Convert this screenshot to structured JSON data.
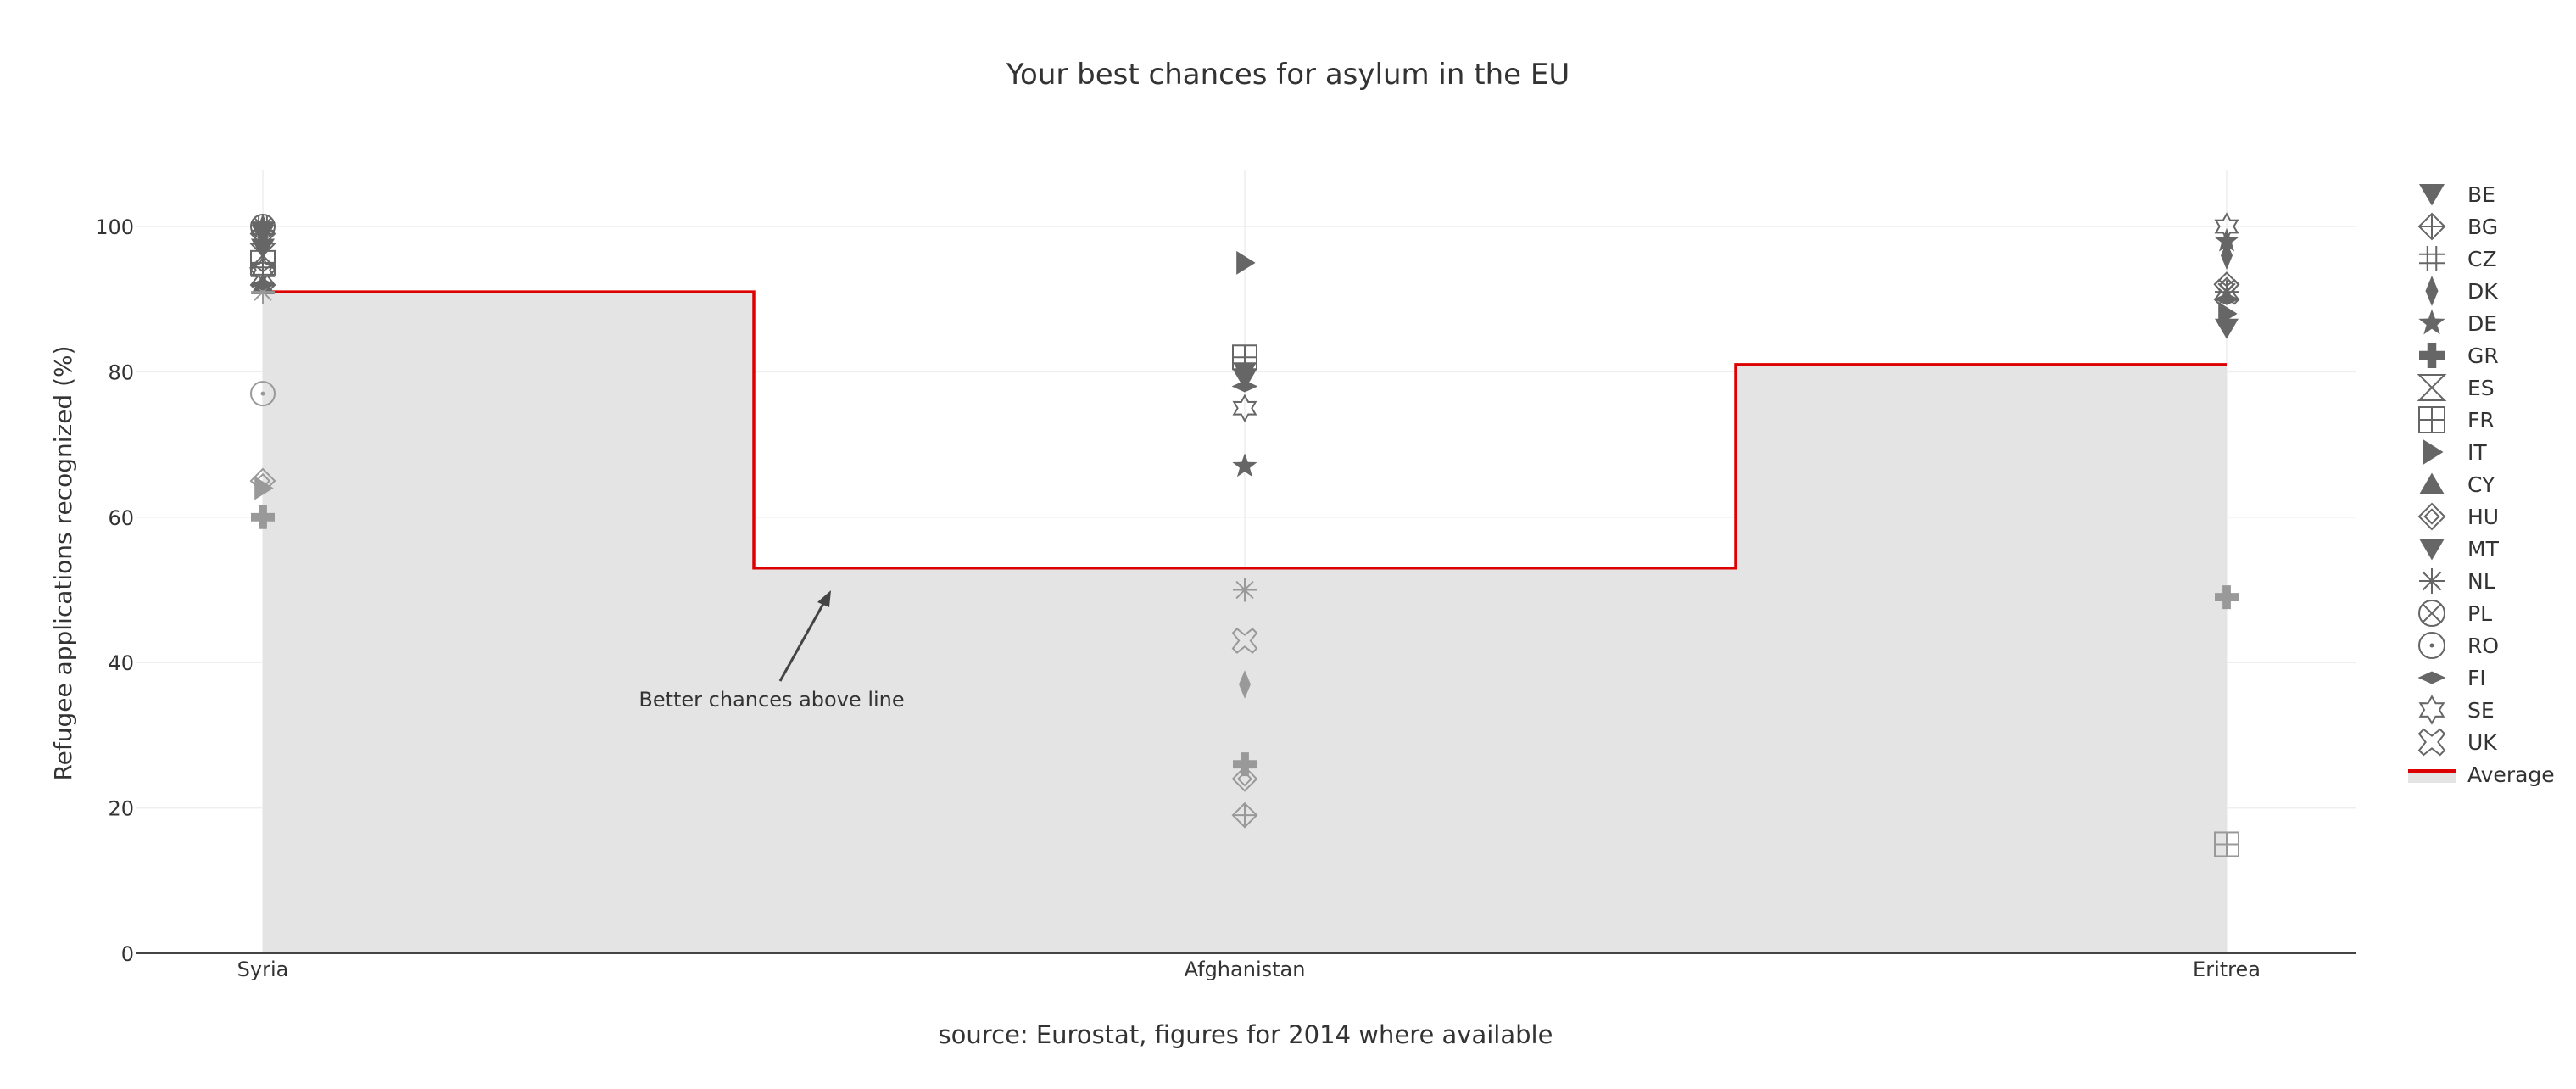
{
  "chart_data": {
    "type": "scatter",
    "title": "Your best chances for asylum in the EU",
    "xlabel": "source: Eurostat, figures for 2014 where available",
    "ylabel": "Refugee applications recognized (%)",
    "categories": [
      "Syria",
      "Afghanistan",
      "Eritrea"
    ],
    "ylim": [
      0,
      108
    ],
    "yticks": [
      0,
      20,
      40,
      60,
      80,
      100
    ],
    "grid": true,
    "legend_position": "right",
    "series": [
      {
        "name": "BE",
        "symbol": "triangle-down",
        "color": "#666666",
        "values": [
          99,
          79,
          86
        ]
      },
      {
        "name": "BG",
        "symbol": "diamond-cross-open",
        "color": "#666666",
        "values": [
          99,
          19,
          null
        ]
      },
      {
        "name": "CZ",
        "symbol": "hash-open",
        "color": "#666666",
        "values": [
          100,
          null,
          null
        ]
      },
      {
        "name": "DK",
        "symbol": "diamond-tall",
        "color": "#666666",
        "values": [
          98,
          37,
          96
        ]
      },
      {
        "name": "DE",
        "symbol": "star",
        "color": "#666666",
        "values": [
          100,
          67,
          98
        ]
      },
      {
        "name": "GR",
        "symbol": "cross",
        "color": "#666666",
        "values": [
          60,
          26,
          49
        ]
      },
      {
        "name": "ES",
        "symbol": "hourglass-open",
        "color": "#666666",
        "values": [
          96,
          null,
          null
        ]
      },
      {
        "name": "FR",
        "symbol": "square-cross-open",
        "color": "#666666",
        "values": [
          95,
          82,
          15
        ]
      },
      {
        "name": "IT",
        "symbol": "triangle-right",
        "color": "#666666",
        "values": [
          64,
          95,
          88
        ]
      },
      {
        "name": "CY",
        "symbol": "triangle-up",
        "color": "#666666",
        "values": [
          92,
          null,
          null
        ]
      },
      {
        "name": "HU",
        "symbol": "diamond-open",
        "color": "#666666",
        "values": [
          65,
          24,
          92
        ]
      },
      {
        "name": "MT",
        "symbol": "triangle-down",
        "color": "#666666",
        "values": [
          97,
          80,
          null
        ]
      },
      {
        "name": "NL",
        "symbol": "asterisk-open",
        "color": "#666666",
        "values": [
          91,
          50,
          91
        ]
      },
      {
        "name": "PL",
        "symbol": "circle-x-open",
        "color": "#666666",
        "values": [
          100,
          null,
          null
        ]
      },
      {
        "name": "RO",
        "symbol": "circle-dot-open",
        "color": "#666666",
        "values": [
          77,
          null,
          null
        ]
      },
      {
        "name": "FI",
        "symbol": "diamond-wide",
        "color": "#666666",
        "values": [
          92,
          78,
          90
        ]
      },
      {
        "name": "SE",
        "symbol": "star-six-open",
        "color": "#666666",
        "values": [
          94,
          75,
          100
        ]
      },
      {
        "name": "UK",
        "symbol": "x-open",
        "color": "#666666",
        "values": [
          93,
          43,
          91
        ]
      },
      {
        "name": "Average",
        "type": "step-line",
        "color": "#dd0000",
        "fill": "#e4e4e4",
        "values": [
          91,
          53,
          81
        ]
      }
    ],
    "annotations": [
      {
        "text": "Better chances above line",
        "arrow": true
      }
    ]
  }
}
